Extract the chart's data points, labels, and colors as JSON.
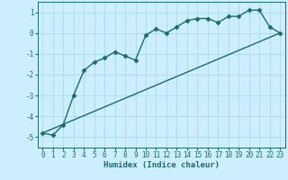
{
  "xlabel": "Humidex (Indice chaleur)",
  "bg_color": "#cceeff",
  "grid_color": "#aadddd",
  "line_color": "#1a6b6b",
  "xlim": [
    -0.5,
    23.5
  ],
  "ylim": [
    -5.5,
    1.5
  ],
  "yticks": [
    -5,
    -4,
    -3,
    -2,
    -1,
    0,
    1
  ],
  "xticks": [
    0,
    1,
    2,
    3,
    4,
    5,
    6,
    7,
    8,
    9,
    10,
    11,
    12,
    13,
    14,
    15,
    16,
    17,
    18,
    19,
    20,
    21,
    22,
    23
  ],
  "curve1_x": [
    0,
    1,
    2,
    3,
    4,
    5,
    6,
    7,
    8,
    9,
    10,
    11,
    12,
    13,
    14,
    15,
    16,
    17,
    18,
    19,
    20,
    21,
    22,
    23
  ],
  "curve1_y": [
    -4.8,
    -4.9,
    -4.4,
    -3.0,
    -1.8,
    -1.4,
    -1.2,
    -0.9,
    -1.1,
    -1.3,
    -0.1,
    0.2,
    0.0,
    0.3,
    0.6,
    0.7,
    0.7,
    0.5,
    0.8,
    0.8,
    1.1,
    1.1,
    0.3,
    0.0
  ],
  "curve2_x": [
    0,
    23
  ],
  "curve2_y": [
    -4.8,
    0.0
  ],
  "marker": "D",
  "markersize": 2.5,
  "linewidth": 1.0,
  "xlabel_fontsize": 6.5,
  "tick_fontsize": 5.5
}
